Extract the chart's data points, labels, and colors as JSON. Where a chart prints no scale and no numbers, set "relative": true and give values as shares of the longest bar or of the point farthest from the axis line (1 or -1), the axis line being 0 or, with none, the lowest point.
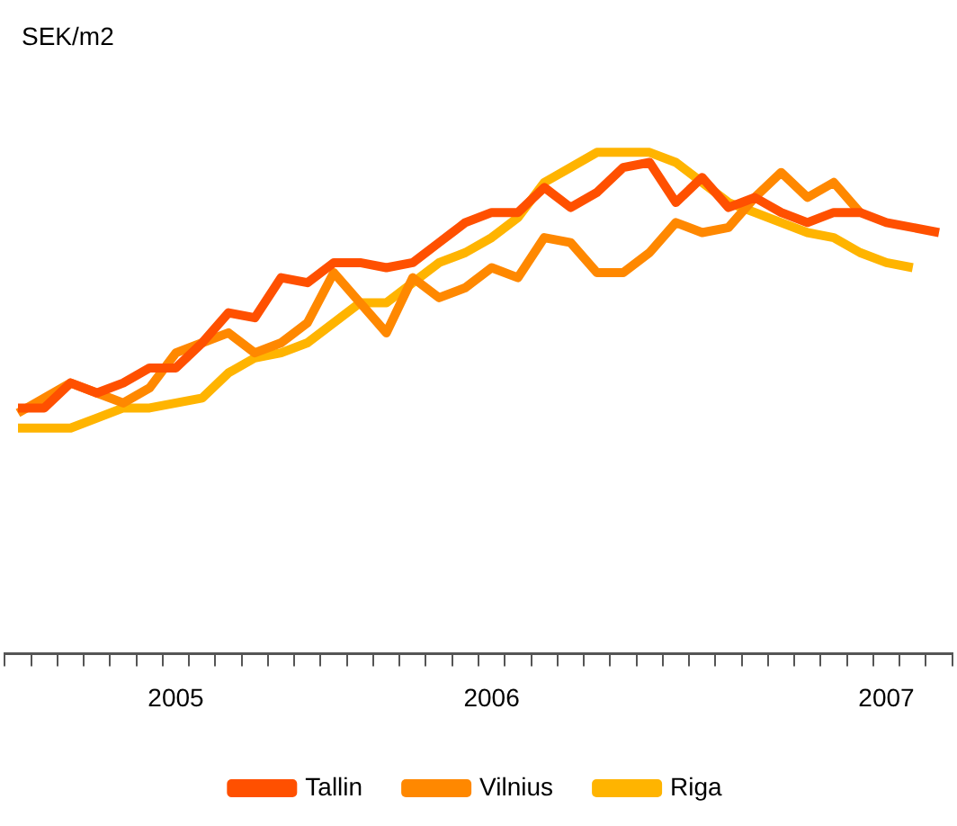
{
  "chart_data": {
    "type": "line",
    "ylabel": "SEK/m2",
    "relative": true,
    "legend": "bottom",
    "grid": false,
    "marker": "none",
    "categories": [
      null,
      null,
      null,
      null,
      null,
      null,
      "2005",
      null,
      null,
      null,
      null,
      null,
      null,
      null,
      null,
      null,
      null,
      null,
      "2006",
      null,
      null,
      null,
      null,
      null,
      null,
      null,
      null,
      null,
      null,
      null,
      null,
      null,
      null,
      "2007",
      null,
      null
    ],
    "series": [
      {
        "name": "Tallin",
        "color": "#ff5000",
        "values": [
          0.49,
          0.49,
          0.54,
          0.52,
          0.54,
          0.57,
          0.57,
          0.62,
          0.68,
          0.67,
          0.75,
          0.74,
          0.78,
          0.78,
          0.77,
          0.78,
          0.82,
          0.86,
          0.88,
          0.88,
          0.93,
          0.89,
          0.92,
          0.97,
          0.98,
          0.9,
          0.95,
          0.89,
          0.91,
          0.88,
          0.86,
          0.88,
          0.88,
          0.86,
          0.85,
          0.84
        ]
      },
      {
        "name": "Vilnius",
        "color": "#ff8800",
        "values": [
          0.48,
          0.51,
          0.54,
          0.52,
          0.5,
          0.53,
          0.6,
          0.62,
          0.64,
          0.6,
          0.62,
          0.66,
          0.76,
          0.7,
          0.64,
          0.75,
          0.71,
          0.73,
          0.77,
          0.75,
          0.83,
          0.82,
          0.76,
          0.76,
          0.8,
          0.86,
          0.84,
          0.85,
          0.91,
          0.96,
          0.91,
          0.94,
          0.88,
          null,
          null,
          null
        ]
      },
      {
        "name": "Riga",
        "color": "#ffb400",
        "values": [
          0.45,
          0.45,
          0.45,
          0.47,
          0.49,
          0.49,
          0.5,
          0.51,
          0.56,
          0.59,
          0.6,
          0.62,
          0.66,
          0.7,
          0.7,
          0.74,
          0.78,
          0.8,
          0.83,
          0.87,
          0.94,
          0.97,
          1,
          1,
          1,
          0.98,
          0.94,
          0.9,
          0.88,
          0.86,
          0.84,
          0.83,
          0.8,
          0.78,
          0.77,
          null
        ]
      }
    ]
  }
}
